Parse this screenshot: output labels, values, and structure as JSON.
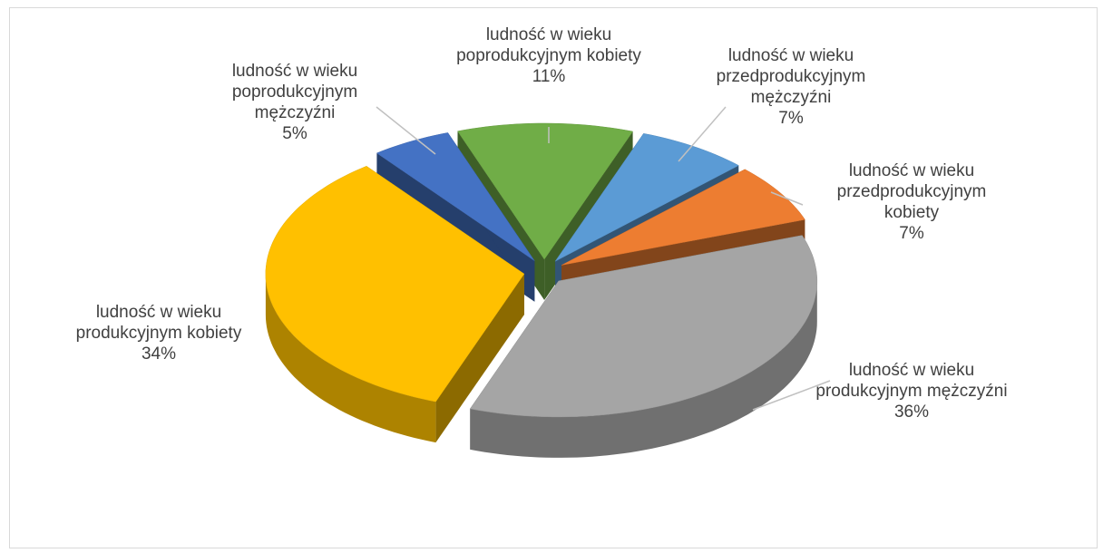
{
  "chart_data": {
    "type": "pie3d",
    "categories": [
      "ludność w wieku przedprodukcyjnym mężczyźni",
      "ludność w wieku przedprodukcyjnym kobiety",
      "ludność w wieku produkcyjnym mężczyźni",
      "ludność w wieku produkcyjnym kobiety",
      "ludność w wieku poprodukcyjnym mężczyźni",
      "ludność w wieku poprodukcyjnym kobiety"
    ],
    "values": [
      7,
      7,
      36,
      34,
      5,
      11
    ],
    "value_labels": [
      "7%",
      "7%",
      "36%",
      "34%",
      "5%",
      "11%"
    ],
    "colors": [
      "#5b9bd5",
      "#ed7d31",
      "#a5a5a5",
      "#ffc000",
      "#4472c4",
      "#70ad47"
    ]
  }
}
